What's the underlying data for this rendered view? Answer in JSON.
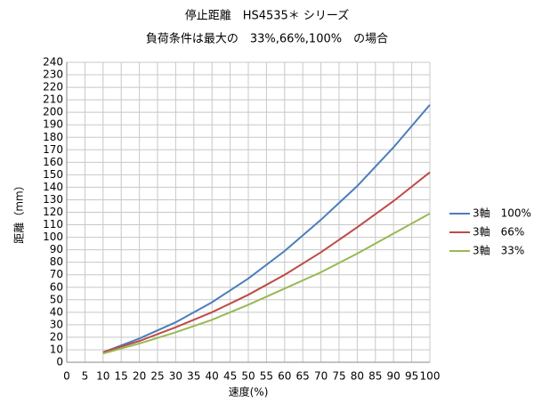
{
  "chart_data": {
    "type": "line",
    "title": "停止距離　HS4535＊ シリーズ",
    "subtitle": "負荷条件は最大の　33%,66%,100%　の場合",
    "x_label": "速度(%)",
    "y_label": "距離（mm）",
    "x": [
      10,
      20,
      30,
      40,
      50,
      60,
      70,
      80,
      90,
      100
    ],
    "series": [
      {
        "name": "3軸　100%",
        "color": "#4a7ebb",
        "values": [
          8,
          19,
          32,
          48,
          67,
          89,
          114,
          141,
          172,
          206
        ]
      },
      {
        "name": "3軸　66%",
        "color": "#be4b48",
        "values": [
          8,
          17,
          28,
          40,
          54,
          70,
          88,
          108,
          129,
          152
        ]
      },
      {
        "name": "3軸　33%",
        "color": "#98b954",
        "values": [
          7,
          15,
          24,
          34,
          46,
          59,
          72,
          87,
          103,
          119
        ]
      }
    ],
    "xlim": [
      0,
      100
    ],
    "xticks": [
      0,
      5,
      10,
      15,
      20,
      25,
      30,
      35,
      40,
      45,
      50,
      55,
      60,
      65,
      70,
      75,
      80,
      85,
      90,
      95,
      100
    ],
    "ylim": [
      0,
      240
    ],
    "yticks": [
      0,
      10,
      20,
      30,
      40,
      50,
      60,
      70,
      80,
      90,
      100,
      110,
      120,
      130,
      140,
      150,
      160,
      170,
      180,
      190,
      200,
      210,
      220,
      230,
      240
    ],
    "grid": true,
    "legend": "right"
  }
}
